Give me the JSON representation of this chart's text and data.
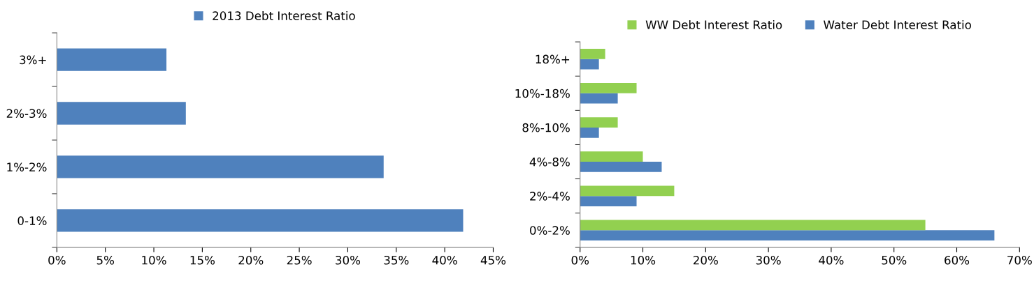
{
  "chart_data": [
    {
      "type": "bar",
      "orientation": "horizontal",
      "categories": [
        "3%+",
        "2%-3%",
        "1%-2%",
        "0-1%"
      ],
      "series": [
        {
          "name": "2013 Debt Interest Ratio",
          "color": "#4f81bd",
          "values": [
            11.3,
            13.3,
            33.7,
            41.9
          ]
        }
      ],
      "xlim": [
        0,
        45
      ],
      "xticks": [
        {
          "value": 0,
          "label": "0%"
        },
        {
          "value": 5,
          "label": "5%"
        },
        {
          "value": 10,
          "label": "10%"
        },
        {
          "value": 15,
          "label": "15%"
        },
        {
          "value": 20,
          "label": "20%"
        },
        {
          "value": 25,
          "label": "25%"
        },
        {
          "value": 30,
          "label": "30%"
        },
        {
          "value": 35,
          "label": "35%"
        },
        {
          "value": 40,
          "label": "40%"
        },
        {
          "value": 45,
          "label": "45%"
        }
      ],
      "grid": false,
      "legend": "top"
    },
    {
      "type": "bar",
      "orientation": "horizontal",
      "categories": [
        "18%+",
        "10%-18%",
        "8%-10%",
        "4%-8%",
        "2%-4%",
        "0%-2%"
      ],
      "series": [
        {
          "name": "Water Debt Interest Ratio",
          "color": "#4f81bd",
          "values": [
            3,
            6,
            3,
            13,
            9,
            66
          ]
        },
        {
          "name": "WW Debt Interest Ratio",
          "color": "#92d050",
          "values": [
            4,
            9,
            6,
            10,
            15,
            55
          ]
        }
      ],
      "xlim": [
        0,
        70
      ],
      "xticks": [
        {
          "value": 0,
          "label": "0%"
        },
        {
          "value": 10,
          "label": "10%"
        },
        {
          "value": 20,
          "label": "20%"
        },
        {
          "value": 30,
          "label": "30%"
        },
        {
          "value": 40,
          "label": "40%"
        },
        {
          "value": 50,
          "label": "50%"
        },
        {
          "value": 60,
          "label": "60%"
        },
        {
          "value": 70,
          "label": "70%"
        }
      ],
      "grid": false,
      "legend": "top"
    }
  ]
}
